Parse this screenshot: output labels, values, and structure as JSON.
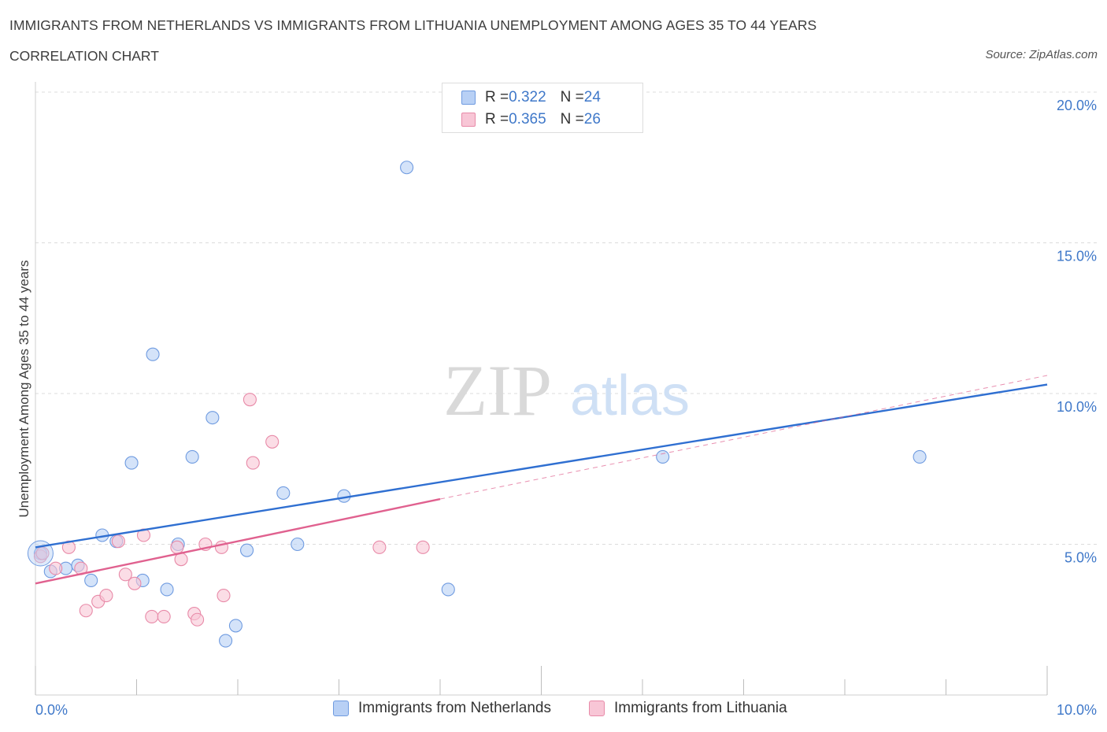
{
  "title": "IMMIGRANTS FROM NETHERLANDS VS IMMIGRANTS FROM LITHUANIA UNEMPLOYMENT AMONG AGES 35 TO 44 YEARS",
  "subtitle": "CORRELATION CHART",
  "source": "Source: ZipAtlas.com",
  "watermark": {
    "zip": "ZIP",
    "atlas": "atlas"
  },
  "colors": {
    "netherlands_fill": "#b8d0f5",
    "netherlands_stroke": "#6f9be0",
    "netherlands_line": "#2f6fd1",
    "lithuania_fill": "#f8c6d6",
    "lithuania_stroke": "#e88aa8",
    "lithuania_line": "#e0618f",
    "tick_text": "#3f78c9",
    "grid": "#dcdcdc"
  },
  "legend_stats": [
    {
      "r_label": "R = ",
      "r_value": "0.322",
      "n_label": "N = ",
      "n_value": "24"
    },
    {
      "r_label": "R = ",
      "r_value": "0.365",
      "n_label": "N = ",
      "n_value": "26"
    }
  ],
  "chart_data": {
    "type": "scatter",
    "title": "IMMIGRANTS FROM NETHERLANDS VS IMMIGRANTS FROM LITHUANIA UNEMPLOYMENT AMONG AGES 35 TO 44 YEARS",
    "ylabel": "Unemployment Among Ages 35 to 44 years",
    "xlim": [
      0,
      10
    ],
    "ylim": [
      0,
      20
    ],
    "x_tick_labels": [
      "0.0%",
      "10.0%"
    ],
    "y_ticks": [
      5,
      10,
      15,
      20
    ],
    "y_tick_labels": [
      "5.0%",
      "10.0%",
      "15.0%",
      "20.0%"
    ],
    "grid": true,
    "legend_position": "top-center",
    "series": [
      {
        "name": "Immigrants from Netherlands",
        "points": [
          [
            0.05,
            4.7
          ],
          [
            0.15,
            4.1
          ],
          [
            0.3,
            4.2
          ],
          [
            0.42,
            4.3
          ],
          [
            0.55,
            3.8
          ],
          [
            0.66,
            5.3
          ],
          [
            0.8,
            5.1
          ],
          [
            0.95,
            7.7
          ],
          [
            1.06,
            3.8
          ],
          [
            1.16,
            11.3
          ],
          [
            1.3,
            3.5
          ],
          [
            1.41,
            5.0
          ],
          [
            1.55,
            7.9
          ],
          [
            1.75,
            9.2
          ],
          [
            1.88,
            1.8
          ],
          [
            1.98,
            2.3
          ],
          [
            2.09,
            4.8
          ],
          [
            2.45,
            6.7
          ],
          [
            2.59,
            5.0
          ],
          [
            3.05,
            6.6
          ],
          [
            3.67,
            17.5
          ],
          [
            4.08,
            3.5
          ],
          [
            6.2,
            7.9
          ],
          [
            8.74,
            7.9
          ]
        ],
        "trend": {
          "x": [
            0,
            10
          ],
          "y": [
            4.9,
            10.3
          ]
        }
      },
      {
        "name": "Immigrants from Lithuania",
        "points": [
          [
            0.05,
            4.6
          ],
          [
            0.2,
            4.2
          ],
          [
            0.33,
            4.9
          ],
          [
            0.45,
            4.2
          ],
          [
            0.5,
            2.8
          ],
          [
            0.62,
            3.1
          ],
          [
            0.7,
            3.3
          ],
          [
            0.82,
            5.1
          ],
          [
            0.89,
            4.0
          ],
          [
            0.98,
            3.7
          ],
          [
            1.07,
            5.3
          ],
          [
            1.15,
            2.6
          ],
          [
            1.27,
            2.6
          ],
          [
            1.4,
            4.9
          ],
          [
            1.44,
            4.5
          ],
          [
            1.57,
            2.7
          ],
          [
            1.6,
            2.5
          ],
          [
            1.68,
            5.0
          ],
          [
            1.84,
            4.9
          ],
          [
            1.86,
            3.3
          ],
          [
            2.12,
            9.8
          ],
          [
            2.15,
            7.7
          ],
          [
            2.34,
            8.4
          ],
          [
            3.4,
            4.9
          ],
          [
            3.83,
            4.9
          ],
          [
            0.07,
            4.7
          ]
        ],
        "trend": {
          "x": [
            0,
            4.0
          ],
          "y": [
            3.7,
            6.5
          ]
        },
        "trend_extension": {
          "x": [
            4.0,
            10
          ],
          "y": [
            6.5,
            10.6
          ]
        }
      }
    ]
  }
}
